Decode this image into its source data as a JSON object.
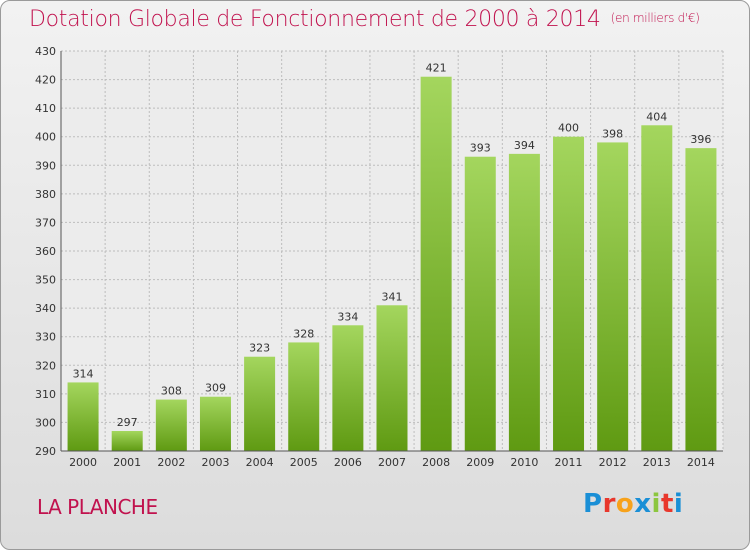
{
  "header": {
    "title": "Dotation Globale de Fonctionnement de 2000 à 2014",
    "unit_note": "(en milliers d'€)"
  },
  "footer": {
    "commune": "LA PLANCHE",
    "logo_text": "Proxiti",
    "logo_colors": [
      "#1a8fd6",
      "#e8372c",
      "#f7a21b",
      "#1a8fd6",
      "#8cc63f",
      "#e8372c",
      "#1a8fd6"
    ]
  },
  "colors": {
    "title": "#c1124e",
    "bar_light": "#a4d65e",
    "bar_dark": "#5f9a12",
    "grid": "#bdbdbd"
  },
  "chart_data": {
    "type": "bar",
    "title": "Dotation Globale de Fonctionnement de 2000 à 2014",
    "subtitle": "(en milliers d'€)",
    "categories": [
      "2000",
      "2001",
      "2002",
      "2003",
      "2004",
      "2005",
      "2006",
      "2007",
      "2008",
      "2009",
      "2010",
      "2011",
      "2012",
      "2013",
      "2014"
    ],
    "values": [
      314,
      297,
      308,
      309,
      323,
      328,
      334,
      341,
      421,
      393,
      394,
      400,
      398,
      404,
      396
    ],
    "ylim": [
      290,
      430
    ],
    "yticks": [
      290,
      300,
      310,
      320,
      330,
      340,
      350,
      360,
      370,
      380,
      390,
      400,
      410,
      420,
      430
    ],
    "grid": true,
    "data_labels": true
  }
}
